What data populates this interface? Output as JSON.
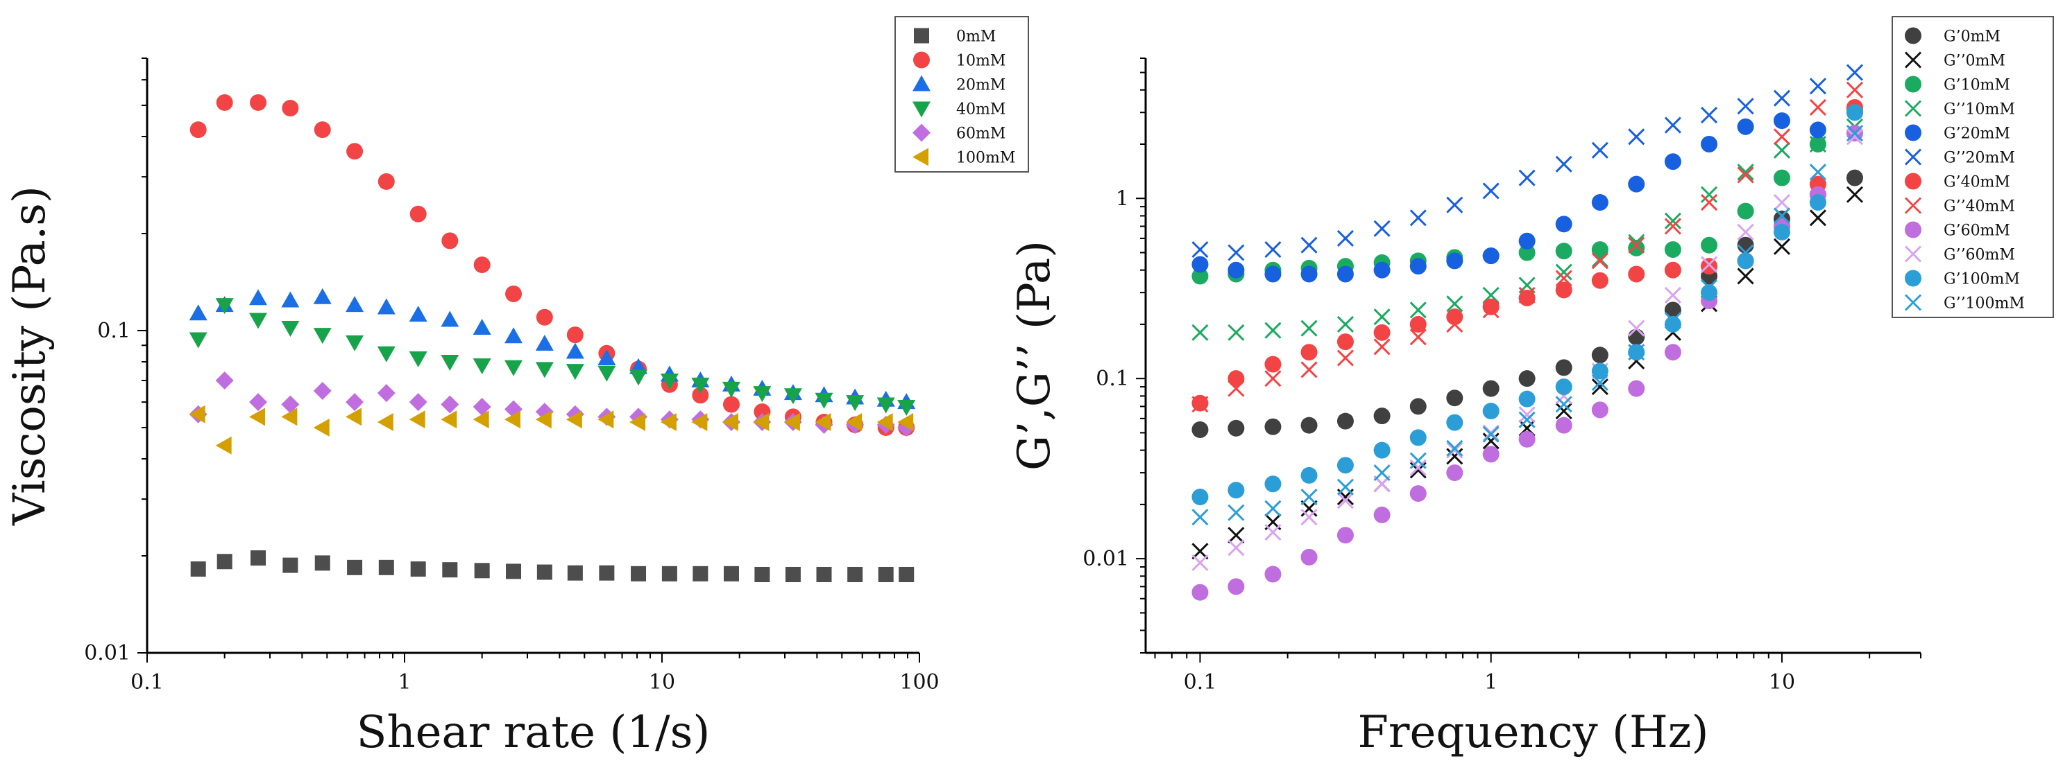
{
  "chart_data": [
    {
      "type": "scatter",
      "title": "",
      "xlabel": "Shear rate (1/s)",
      "ylabel": "Viscosity (Pa.s)",
      "xscale": "log",
      "yscale": "log",
      "xlim": [
        0.1,
        100
      ],
      "ylim": [
        0.01,
        0.7
      ],
      "xticks": [
        0.1,
        1,
        10,
        100
      ],
      "xtick_labels": [
        "0.1",
        "1",
        "10",
        "100"
      ],
      "yticks": [
        0.01,
        0.1
      ],
      "ytick_labels": [
        "0.01",
        "0.1"
      ],
      "grid": false,
      "legend_position": "top-right",
      "x": [
        0.158,
        0.2,
        0.27,
        0.36,
        0.48,
        0.64,
        0.85,
        1.13,
        1.5,
        2.0,
        2.65,
        3.5,
        4.6,
        6.1,
        8.1,
        10.7,
        14.1,
        18.6,
        24.5,
        32.3,
        42.6,
        56.2,
        74.1,
        89.0
      ],
      "series": [
        {
          "name": "0mM",
          "marker": "square",
          "color": "#4d4d4d",
          "values": [
            0.0182,
            0.0192,
            0.0197,
            0.0187,
            0.019,
            0.0184,
            0.0184,
            0.0182,
            0.0181,
            0.018,
            0.0179,
            0.0178,
            0.0177,
            0.0177,
            0.0176,
            0.0176,
            0.0176,
            0.0176,
            0.0175,
            0.0175,
            0.0175,
            0.0175,
            0.0175,
            0.0175
          ]
        },
        {
          "name": "10mM",
          "marker": "circle",
          "color": "#f24444",
          "values": [
            0.42,
            0.51,
            0.51,
            0.49,
            0.42,
            0.36,
            0.29,
            0.23,
            0.19,
            0.16,
            0.13,
            0.11,
            0.097,
            0.085,
            0.076,
            0.068,
            0.063,
            0.059,
            0.056,
            0.054,
            0.052,
            0.051,
            0.05,
            0.05
          ]
        },
        {
          "name": "20mM",
          "marker": "triangle-up",
          "color": "#1a6fe6",
          "values": [
            0.113,
            0.12,
            0.126,
            0.124,
            0.127,
            0.12,
            0.118,
            0.112,
            0.108,
            0.102,
            0.096,
            0.091,
            0.086,
            0.082,
            0.077,
            0.073,
            0.07,
            0.068,
            0.066,
            0.064,
            0.063,
            0.062,
            0.061,
            0.06
          ]
        },
        {
          "name": "40mM",
          "marker": "triangle-down",
          "color": "#17a34a",
          "values": [
            0.094,
            0.12,
            0.108,
            0.102,
            0.097,
            0.092,
            0.085,
            0.082,
            0.08,
            0.078,
            0.077,
            0.076,
            0.075,
            0.074,
            0.072,
            0.07,
            0.068,
            0.066,
            0.064,
            0.063,
            0.061,
            0.06,
            0.059,
            0.058
          ]
        },
        {
          "name": "60mM",
          "marker": "diamond",
          "color": "#c06de0",
          "values": [
            0.055,
            0.07,
            0.06,
            0.059,
            0.065,
            0.06,
            0.064,
            0.06,
            0.059,
            0.058,
            0.057,
            0.056,
            0.055,
            0.054,
            0.054,
            0.053,
            0.053,
            0.052,
            0.052,
            0.052,
            0.051,
            0.051,
            0.051,
            0.05
          ]
        },
        {
          "name": "100mM",
          "marker": "triangle-left",
          "color": "#d4a000",
          "values": [
            0.055,
            0.044,
            0.054,
            0.054,
            0.05,
            0.054,
            0.052,
            0.053,
            0.053,
            0.053,
            0.053,
            0.053,
            0.053,
            0.053,
            0.052,
            0.052,
            0.052,
            0.052,
            0.052,
            0.052,
            0.052,
            0.052,
            0.052,
            0.052
          ]
        }
      ]
    },
    {
      "type": "scatter",
      "title": "",
      "xlabel": "Frequency (Hz)",
      "ylabel": "G’,G’’ (Pa)",
      "xscale": "log",
      "yscale": "log",
      "xlim": [
        0.065,
        30
      ],
      "ylim": [
        0.003,
        6
      ],
      "xticks": [
        0.1,
        1,
        10
      ],
      "xtick_labels": [
        "0.1",
        "1",
        "10"
      ],
      "yticks": [
        0.01,
        0.1,
        1
      ],
      "ytick_labels": [
        "0.01",
        "0.1",
        "1"
      ],
      "grid": false,
      "legend_position": "top-right",
      "x": [
        0.1,
        0.133,
        0.178,
        0.237,
        0.316,
        0.422,
        0.562,
        0.75,
        1.0,
        1.33,
        1.78,
        2.37,
        3.16,
        4.22,
        5.62,
        7.5,
        10.0,
        13.3,
        17.8
      ],
      "series": [
        {
          "name": "G’0mM",
          "marker": "circle",
          "color": "#404040",
          "values": [
            0.052,
            0.053,
            0.054,
            0.055,
            0.058,
            0.062,
            0.07,
            0.078,
            0.088,
            0.1,
            0.115,
            0.135,
            0.17,
            0.24,
            0.37,
            0.55,
            0.77,
            1.05,
            1.3
          ]
        },
        {
          "name": "G’’0mM",
          "marker": "x",
          "color": "#111111",
          "values": [
            0.011,
            0.0135,
            0.016,
            0.019,
            0.022,
            0.026,
            0.031,
            0.037,
            0.045,
            0.053,
            0.066,
            0.09,
            0.125,
            0.18,
            0.26,
            0.37,
            0.54,
            0.78,
            1.05
          ]
        },
        {
          "name": "G’10mM",
          "marker": "circle",
          "color": "#1aaa60",
          "values": [
            0.37,
            0.38,
            0.4,
            0.41,
            0.42,
            0.44,
            0.45,
            0.47,
            0.48,
            0.5,
            0.51,
            0.52,
            0.53,
            0.52,
            0.55,
            0.85,
            1.3,
            2.0,
            3.1
          ]
        },
        {
          "name": "G’’10mM",
          "marker": "x",
          "color": "#1aaa60",
          "values": [
            0.18,
            0.18,
            0.185,
            0.19,
            0.2,
            0.22,
            0.24,
            0.26,
            0.29,
            0.33,
            0.39,
            0.46,
            0.57,
            0.75,
            1.05,
            1.4,
            1.85,
            2.0,
            2.5
          ]
        },
        {
          "name": "G’20mM",
          "marker": "circle",
          "color": "#1760e0",
          "values": [
            0.43,
            0.4,
            0.38,
            0.38,
            0.38,
            0.4,
            0.42,
            0.45,
            0.48,
            0.58,
            0.72,
            0.95,
            1.2,
            1.6,
            2.0,
            2.5,
            2.7,
            2.4,
            3.0
          ]
        },
        {
          "name": "G’’20mM",
          "marker": "x",
          "color": "#1760e0",
          "values": [
            0.52,
            0.5,
            0.52,
            0.55,
            0.6,
            0.68,
            0.78,
            0.92,
            1.1,
            1.3,
            1.55,
            1.85,
            2.2,
            2.55,
            2.9,
            3.25,
            3.6,
            4.2,
            5.0
          ]
        },
        {
          "name": "G’40mM",
          "marker": "circle",
          "color": "#f24444",
          "values": [
            0.073,
            0.1,
            0.12,
            0.14,
            0.16,
            0.18,
            0.2,
            0.22,
            0.25,
            0.28,
            0.31,
            0.35,
            0.38,
            0.4,
            0.42,
            0.45,
            0.7,
            1.2,
            3.2
          ]
        },
        {
          "name": "G’’40mM",
          "marker": "x",
          "color": "#f24444",
          "values": [
            0.072,
            0.088,
            0.1,
            0.112,
            0.13,
            0.15,
            0.17,
            0.2,
            0.24,
            0.29,
            0.36,
            0.45,
            0.55,
            0.7,
            0.95,
            1.35,
            2.2,
            3.2,
            4.0
          ]
        },
        {
          "name": "G’60mM",
          "marker": "circle",
          "color": "#c06de0",
          "values": [
            0.0065,
            0.007,
            0.0082,
            0.0102,
            0.0135,
            0.0175,
            0.023,
            0.03,
            0.038,
            0.046,
            0.055,
            0.067,
            0.088,
            0.14,
            0.27,
            0.45,
            0.7,
            1.05,
            2.3
          ]
        },
        {
          "name": "G’’60mM",
          "marker": "x",
          "color": "#d9a3ef",
          "values": [
            0.0095,
            0.0115,
            0.014,
            0.017,
            0.021,
            0.026,
            0.032,
            0.04,
            0.05,
            0.063,
            0.08,
            0.11,
            0.19,
            0.29,
            0.43,
            0.65,
            0.95,
            1.4,
            2.2
          ]
        },
        {
          "name": "G’100mM",
          "marker": "circle",
          "color": "#2b9ed8",
          "values": [
            0.022,
            0.024,
            0.026,
            0.029,
            0.033,
            0.04,
            0.047,
            0.057,
            0.066,
            0.077,
            0.09,
            0.11,
            0.14,
            0.2,
            0.3,
            0.45,
            0.65,
            0.95,
            3.0
          ]
        },
        {
          "name": "G’’100mM",
          "marker": "x",
          "color": "#2b9ed8",
          "values": [
            0.017,
            0.018,
            0.019,
            0.022,
            0.025,
            0.03,
            0.035,
            0.041,
            0.049,
            0.059,
            0.072,
            0.095,
            0.14,
            0.21,
            0.32,
            0.5,
            0.8,
            1.4,
            2.3
          ]
        }
      ]
    }
  ]
}
